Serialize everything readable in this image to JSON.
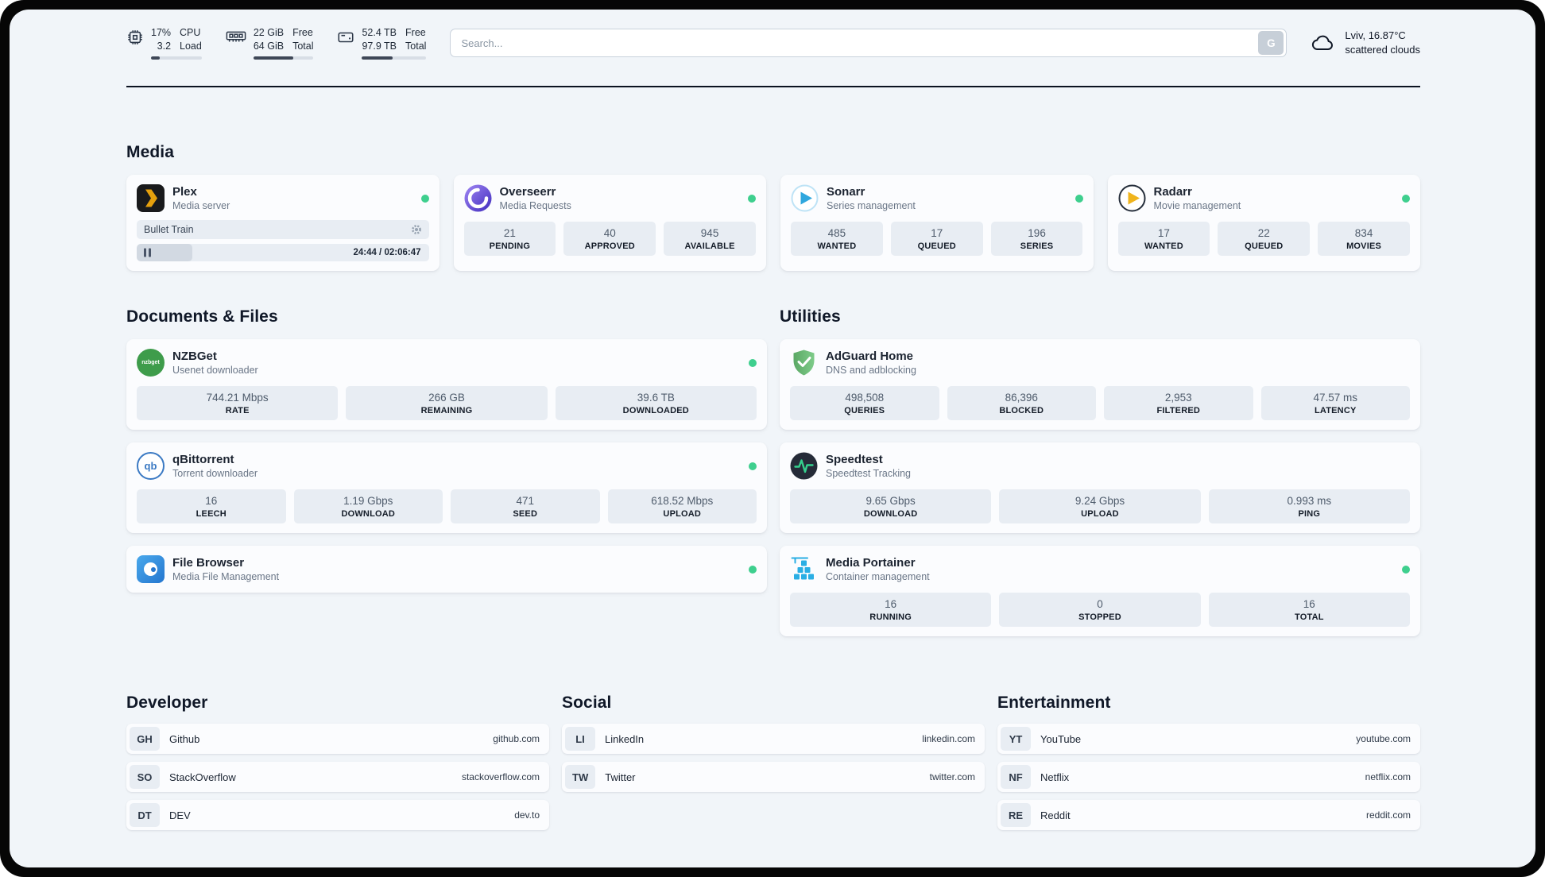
{
  "colors": {
    "status_online": "#3ecf8e",
    "plex_amber": "#e5a00d",
    "adguard_green": "#67b87a",
    "portainer_blue": "#2aaee4",
    "page_background": "#f1f5f9"
  },
  "header": {
    "cpu": {
      "stat_top": "17%",
      "stat_bottom": "3.2",
      "label_top": "CPU",
      "label_bottom": "Load",
      "used_percent": 17
    },
    "ram": {
      "stat_top": "22 GiB",
      "stat_bottom": "64 GiB",
      "label_top": "Free",
      "label_bottom": "Total",
      "used_percent": 66
    },
    "disk": {
      "stat_top": "52.4 TB",
      "stat_bottom": "97.9 TB",
      "label_top": "Free",
      "label_bottom": "Total",
      "used_percent": 47
    },
    "search": {
      "placeholder": "Search...",
      "button_label": "G"
    },
    "weather": {
      "location": "Lviv, 16.87°C",
      "condition": "scattered clouds"
    }
  },
  "sections": {
    "media": {
      "title": "Media",
      "plex": {
        "name": "Plex",
        "description": "Media server",
        "now_playing": {
          "title": "Bullet Train",
          "time": "24:44 / 02:06:47",
          "progress_percent": 19
        }
      },
      "overseerr": {
        "name": "Overseerr",
        "description": "Media Requests",
        "stats": [
          {
            "value": "21",
            "label": "PENDING"
          },
          {
            "value": "40",
            "label": "APPROVED"
          },
          {
            "value": "945",
            "label": "AVAILABLE"
          }
        ]
      },
      "sonarr": {
        "name": "Sonarr",
        "description": "Series management",
        "stats": [
          {
            "value": "485",
            "label": "WANTED"
          },
          {
            "value": "17",
            "label": "QUEUED"
          },
          {
            "value": "196",
            "label": "SERIES"
          }
        ]
      },
      "radarr": {
        "name": "Radarr",
        "description": "Movie management",
        "stats": [
          {
            "value": "17",
            "label": "WANTED"
          },
          {
            "value": "22",
            "label": "QUEUED"
          },
          {
            "value": "834",
            "label": "MOVIES"
          }
        ]
      }
    },
    "documents": {
      "title": "Documents & Files",
      "nzbget": {
        "name": "NZBGet",
        "description": "Usenet downloader",
        "icon_text": "nzbget",
        "stats": [
          {
            "value": "744.21 Mbps",
            "label": "RATE"
          },
          {
            "value": "266 GB",
            "label": "REMAINING"
          },
          {
            "value": "39.6 TB",
            "label": "DOWNLOADED"
          }
        ]
      },
      "qbittorrent": {
        "name": "qBittorrent",
        "description": "Torrent downloader",
        "icon_text": "qb",
        "stats": [
          {
            "value": "16",
            "label": "LEECH"
          },
          {
            "value": "1.19 Gbps",
            "label": "DOWNLOAD"
          },
          {
            "value": "471",
            "label": "SEED"
          },
          {
            "value": "618.52 Mbps",
            "label": "UPLOAD"
          }
        ]
      },
      "filebrowser": {
        "name": "File Browser",
        "description": "Media File Management"
      }
    },
    "utilities": {
      "title": "Utilities",
      "adguard": {
        "name": "AdGuard Home",
        "description": "DNS and adblocking",
        "stats": [
          {
            "value": "498,508",
            "label": "QUERIES"
          },
          {
            "value": "86,396",
            "label": "BLOCKED"
          },
          {
            "value": "2,953",
            "label": "FILTERED"
          },
          {
            "value": "47.57 ms",
            "label": "LATENCY"
          }
        ]
      },
      "speedtest": {
        "name": "Speedtest",
        "description": "Speedtest Tracking",
        "stats": [
          {
            "value": "9.65 Gbps",
            "label": "DOWNLOAD"
          },
          {
            "value": "9.24 Gbps",
            "label": "UPLOAD"
          },
          {
            "value": "0.993 ms",
            "label": "PING"
          }
        ]
      },
      "portainer": {
        "name": "Media Portainer",
        "description": "Container management",
        "stats": [
          {
            "value": "16",
            "label": "RUNNING"
          },
          {
            "value": "0",
            "label": "STOPPED"
          },
          {
            "value": "16",
            "label": "TOTAL"
          }
        ]
      }
    }
  },
  "bookmarks": {
    "developer": {
      "title": "Developer",
      "items": [
        {
          "abbr": "GH",
          "name": "Github",
          "url": "github.com"
        },
        {
          "abbr": "SO",
          "name": "StackOverflow",
          "url": "stackoverflow.com"
        },
        {
          "abbr": "DT",
          "name": "DEV",
          "url": "dev.to"
        }
      ]
    },
    "social": {
      "title": "Social",
      "items": [
        {
          "abbr": "LI",
          "name": "LinkedIn",
          "url": "linkedin.com"
        },
        {
          "abbr": "TW",
          "name": "Twitter",
          "url": "twitter.com"
        }
      ]
    },
    "entertainment": {
      "title": "Entertainment",
      "items": [
        {
          "abbr": "YT",
          "name": "YouTube",
          "url": "youtube.com"
        },
        {
          "abbr": "NF",
          "name": "Netflix",
          "url": "netflix.com"
        },
        {
          "abbr": "RE",
          "name": "Reddit",
          "url": "reddit.com"
        }
      ]
    }
  }
}
